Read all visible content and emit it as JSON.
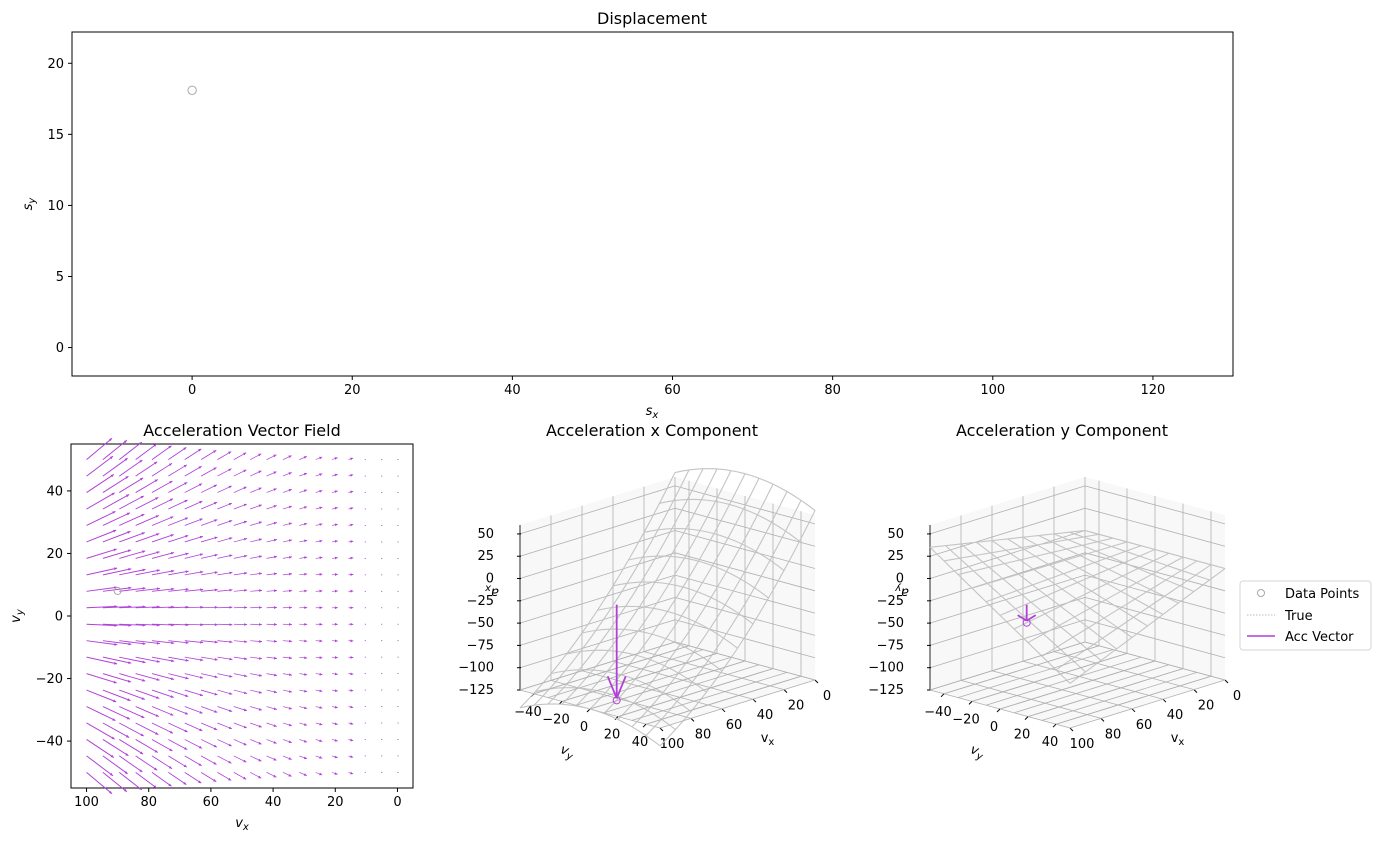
{
  "colors": {
    "vector": "#b040d8",
    "data_point": "#a8a8a8",
    "true_line": "#bbbbbb"
  },
  "chart_data": [
    {
      "id": "displacement",
      "type": "scatter",
      "title": "Displacement",
      "xlabel": "s_x",
      "ylabel": "s_y",
      "xlim": [
        -15,
        130
      ],
      "ylim": [
        -2,
        22.2
      ],
      "xticks": [
        0,
        20,
        40,
        60,
        80,
        100,
        120
      ],
      "yticks": [
        0,
        5,
        10,
        15,
        20
      ],
      "points": [
        {
          "x": 0,
          "y": 18.1
        }
      ]
    },
    {
      "id": "acc-field",
      "type": "quiver",
      "title": "Acceleration Vector Field",
      "xlabel": "v_x",
      "ylabel": "v_y",
      "xlim": [
        105,
        -5
      ],
      "ylim": [
        55,
        -55
      ],
      "xticks": [
        100,
        80,
        60,
        40,
        20,
        0
      ],
      "yticks": [
        -40,
        -20,
        0,
        20,
        40
      ],
      "grid_x": [
        0,
        100,
        20
      ],
      "grid_y": [
        -50,
        50,
        20
      ],
      "data_point": {
        "x": 90,
        "y": 8
      }
    },
    {
      "id": "acc-x",
      "type": "surface3d",
      "title": "Acceleration x Component",
      "xlabel": "v_x",
      "ylabel": "v_y",
      "zlabel": "a_x",
      "zticks": [
        50,
        25,
        0,
        -25,
        -50,
        -75,
        -100,
        -125
      ],
      "vx_ticks": [
        100,
        80,
        60,
        40,
        20,
        0
      ],
      "vy_ticks": [
        -40,
        -20,
        0,
        20,
        40
      ],
      "vector": {
        "from": -10,
        "to": -115
      }
    },
    {
      "id": "acc-y",
      "type": "surface3d",
      "title": "Acceleration y Component",
      "xlabel": "v_x",
      "ylabel": "v_y",
      "zlabel": "a_y",
      "zticks": [
        50,
        25,
        0,
        -25,
        -50,
        -75,
        -100,
        -125
      ],
      "vx_ticks": [
        100,
        80,
        60,
        40,
        20,
        0
      ],
      "vy_ticks": [
        -40,
        -20,
        0,
        20,
        40
      ],
      "vector": {
        "from": -10,
        "to": -28
      }
    }
  ],
  "legend": {
    "entries": [
      {
        "label": "Data Points",
        "kind": "marker"
      },
      {
        "label": "True",
        "kind": "dotted"
      },
      {
        "label": "Acc Vector",
        "kind": "line"
      }
    ]
  }
}
